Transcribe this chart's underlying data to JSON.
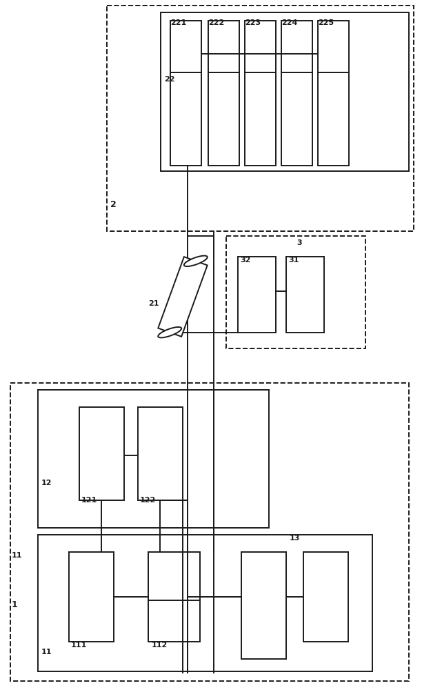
{
  "bg_color": "#ffffff",
  "line_color": "#1a1a1a",
  "line_width": 1.4,
  "fig_width": 6.12,
  "fig_height": 10.0,
  "dpi": 100
}
